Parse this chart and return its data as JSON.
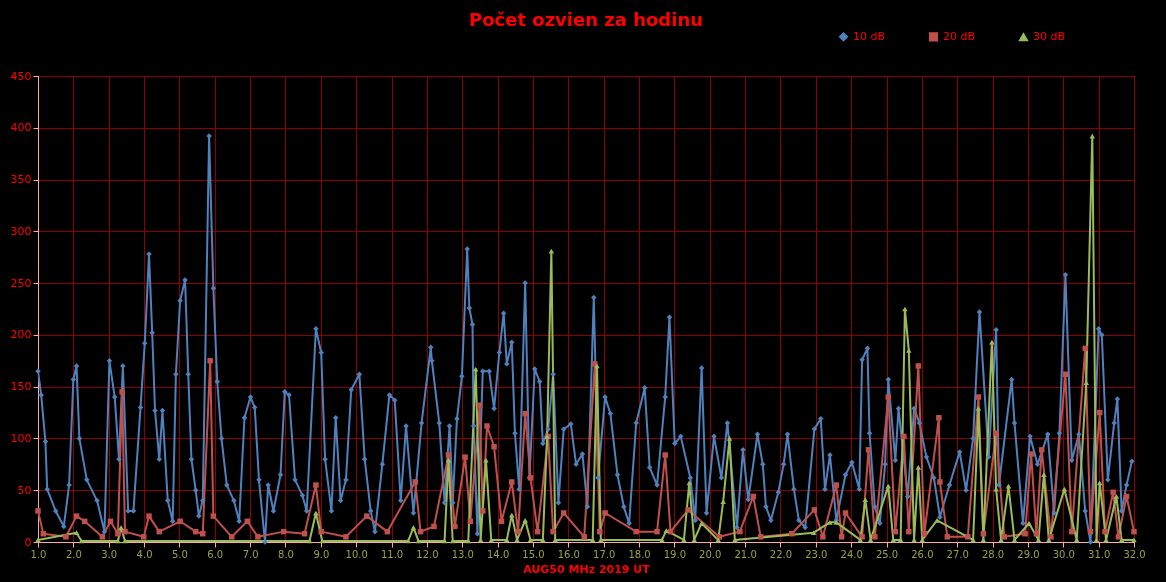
{
  "chart_data": {
    "type": "line",
    "title": "Počet ozvien za hodinu",
    "xlabel": "AUG50 MHz 2019 UT",
    "xlim": [
      1,
      32
    ],
    "xticks": [
      {
        "value": 1,
        "label": "1.0"
      },
      {
        "value": 2,
        "label": "2.0"
      },
      {
        "value": 3,
        "label": "3.0"
      },
      {
        "value": 4,
        "label": "4.0"
      },
      {
        "value": 5,
        "label": "5.0"
      },
      {
        "value": 6,
        "label": "6.0"
      },
      {
        "value": 7,
        "label": "7.0"
      },
      {
        "value": 8,
        "label": "8.0"
      },
      {
        "value": 9,
        "label": "9.0"
      },
      {
        "value": 10,
        "label": "10.0"
      },
      {
        "value": 11,
        "label": "11.0"
      },
      {
        "value": 12,
        "label": "12.0"
      },
      {
        "value": 13,
        "label": "13.0"
      },
      {
        "value": 14,
        "label": "14.0"
      },
      {
        "value": 15,
        "label": "15.0"
      },
      {
        "value": 16,
        "label": "16.0"
      },
      {
        "value": 17,
        "label": "17.0"
      },
      {
        "value": 18,
        "label": "18.0"
      },
      {
        "value": 19,
        "label": "19.0"
      },
      {
        "value": 20,
        "label": "20.0"
      },
      {
        "value": 21,
        "label": "21.0"
      },
      {
        "value": 22,
        "label": "22.0"
      },
      {
        "value": 23,
        "label": "23.0"
      },
      {
        "value": 24,
        "label": "24.0"
      },
      {
        "value": 25,
        "label": "25.0"
      },
      {
        "value": 26,
        "label": "26.0"
      },
      {
        "value": 27,
        "label": "27.0"
      },
      {
        "value": 28,
        "label": "28.0"
      },
      {
        "value": 29,
        "label": "29.0"
      },
      {
        "value": 30,
        "label": "30.0"
      },
      {
        "value": 31,
        "label": "31.0"
      },
      {
        "value": 32,
        "label": "32.0"
      }
    ],
    "ylim": [
      0,
      450
    ],
    "yticks": [
      0,
      50,
      100,
      150,
      200,
      250,
      300,
      350,
      400,
      450
    ],
    "grid": true,
    "legend": "top right",
    "line_style": "solid",
    "series": [
      {
        "name": "10 dB",
        "color": "#4f81bd",
        "marker": "diamond",
        "x": [
          1.0,
          1.09,
          1.21,
          1.26,
          1.5,
          1.73,
          1.88,
          2.0,
          2.09,
          2.17,
          2.38,
          2.67,
          2.88,
          3.02,
          3.17,
          3.29,
          3.4,
          3.55,
          3.7,
          3.9,
          4.02,
          4.14,
          4.23,
          4.31,
          4.43,
          4.52,
          4.67,
          4.81,
          4.9,
          5.02,
          5.16,
          5.25,
          5.34,
          5.46,
          5.55,
          5.66,
          5.84,
          5.96,
          6.07,
          6.19,
          6.34,
          6.54,
          6.69,
          6.84,
          7.01,
          7.13,
          7.25,
          7.42,
          7.51,
          7.66,
          7.86,
          7.98,
          8.1,
          8.27,
          8.48,
          8.6,
          8.86,
          9.01,
          9.12,
          9.3,
          9.42,
          9.56,
          9.71,
          9.86,
          10.09,
          10.24,
          10.41,
          10.53,
          10.74,
          10.94,
          11.09,
          11.26,
          11.41,
          11.62,
          11.85,
          12.11,
          12.14,
          12.35,
          12.5,
          12.64,
          12.73,
          12.85,
          12.99,
          13.14,
          13.2,
          13.29,
          13.32,
          13.43,
          13.58,
          13.76,
          13.9,
          14.05,
          14.17,
          14.26,
          14.4,
          14.49,
          14.61,
          14.78,
          14.9,
          15.05,
          15.19,
          15.28,
          15.43,
          15.57,
          15.72,
          15.87,
          16.07,
          16.22,
          16.4,
          16.54,
          16.72,
          16.84,
          17.04,
          17.19,
          17.39,
          17.57,
          17.72,
          17.92,
          18.16,
          18.3,
          18.51,
          18.74,
          18.86,
          19.01,
          19.18,
          19.45,
          19.59,
          19.77,
          19.91,
          20.12,
          20.33,
          20.5,
          20.77,
          20.94,
          21.09,
          21.35,
          21.5,
          21.59,
          21.73,
          21.94,
          22.09,
          22.2,
          22.38,
          22.52,
          22.7,
          22.96,
          23.14,
          23.26,
          23.4,
          23.58,
          23.84,
          24.02,
          24.23,
          24.31,
          24.46,
          24.52,
          24.67,
          24.81,
          24.96,
          25.05,
          25.25,
          25.34,
          25.6,
          25.78,
          25.93,
          26.13,
          26.34,
          26.51,
          26.78,
          27.07,
          27.25,
          27.45,
          27.63,
          27.89,
          28.1,
          28.18,
          28.54,
          28.62,
          28.86,
          29.06,
          29.27,
          29.56,
          29.74,
          29.89,
          30.06,
          30.24,
          30.44,
          30.62,
          30.77,
          31.0,
          31.09,
          31.26,
          31.44,
          31.53,
          31.65,
          31.79,
          31.94
        ],
        "values": [
          165,
          142,
          97,
          51,
          30,
          15,
          55,
          157,
          170,
          100,
          60,
          40,
          10,
          175,
          140,
          80,
          170,
          30,
          30,
          130,
          192,
          278,
          202,
          127,
          80,
          127,
          40,
          20,
          162,
          233,
          253,
          162,
          80,
          50,
          25,
          40,
          392,
          245,
          155,
          100,
          55,
          40,
          20,
          120,
          140,
          130,
          60,
          0,
          55,
          30,
          65,
          145,
          142,
          60,
          45,
          30,
          206,
          183,
          80,
          30,
          120,
          40,
          60,
          147,
          162,
          80,
          30,
          10,
          75,
          142,
          137,
          40,
          112,
          28,
          115,
          188,
          175,
          115,
          38,
          112,
          38,
          119,
          160,
          283,
          226,
          210,
          112,
          8,
          165,
          165,
          129,
          183,
          221,
          172,
          193,
          105,
          51,
          250,
          62,
          167,
          155,
          95,
          109,
          162,
          38,
          109,
          114,
          75,
          85,
          34,
          236,
          62,
          140,
          124,
          65,
          34,
          18,
          115,
          149,
          72,
          55,
          140,
          217,
          95,
          102,
          62,
          21,
          168,
          28,
          102,
          62,
          115,
          14,
          89,
          41,
          104,
          75,
          34,
          21,
          48,
          75,
          104,
          51,
          21,
          14,
          109,
          119,
          51,
          84,
          21,
          65,
          77,
          51,
          176,
          187,
          105,
          34,
          18,
          75,
          157,
          79,
          129,
          44,
          129,
          115,
          82,
          62,
          24,
          55,
          87,
          50,
          100,
          222,
          82,
          205,
          55,
          157,
          115,
          18,
          102,
          75,
          104,
          28,
          105,
          258,
          79,
          104,
          30,
          0,
          206,
          200,
          60,
          115,
          138,
          30,
          55,
          78
        ]
      },
      {
        "name": "20 dB",
        "color": "#c0504d",
        "marker": "square",
        "x": [
          1.0,
          1.15,
          1.79,
          2.09,
          2.32,
          2.82,
          3.05,
          3.26,
          3.38,
          3.46,
          3.99,
          4.14,
          4.43,
          5.02,
          5.46,
          5.66,
          5.87,
          5.96,
          6.48,
          6.92,
          7.22,
          7.95,
          8.54,
          8.86,
          9.01,
          9.71,
          10.3,
          10.88,
          11.67,
          11.82,
          12.2,
          12.61,
          12.79,
          13.08,
          13.23,
          13.49,
          13.58,
          13.7,
          13.9,
          14.11,
          14.4,
          14.58,
          14.78,
          14.93,
          15.13,
          15.43,
          15.57,
          15.87,
          16.45,
          16.75,
          16.89,
          17.04,
          17.92,
          18.51,
          18.74,
          18.89,
          19.39,
          20.27,
          20.85,
          21.23,
          21.44,
          22.32,
          22.96,
          23.2,
          23.58,
          23.73,
          23.84,
          24.31,
          24.49,
          24.67,
          25.05,
          25.25,
          25.49,
          25.63,
          25.9,
          26.07,
          26.48,
          26.51,
          26.72,
          27.3,
          27.6,
          27.74,
          28.1,
          28.33,
          28.92,
          29.09,
          29.24,
          29.39,
          29.65,
          30.06,
          30.24,
          30.62,
          30.77,
          31.03,
          31.18,
          31.41,
          31.56,
          31.79,
          32.0
        ],
        "values": [
          30,
          8,
          5,
          25,
          20,
          5,
          20,
          8,
          145,
          10,
          5,
          25,
          10,
          20,
          10,
          8,
          175,
          25,
          5,
          20,
          5,
          10,
          8,
          55,
          10,
          5,
          25,
          10,
          58,
          10,
          15,
          84,
          15,
          82,
          20,
          132,
          30,
          112,
          92,
          20,
          58,
          10,
          124,
          62,
          10,
          102,
          10,
          28,
          5,
          172,
          10,
          28,
          10,
          10,
          84,
          10,
          31,
          5,
          10,
          44,
          5,
          8,
          31,
          5,
          55,
          5,
          28,
          5,
          89,
          5,
          140,
          10,
          102,
          10,
          170,
          8,
          120,
          58,
          5,
          5,
          140,
          8,
          105,
          5,
          8,
          85,
          8,
          89,
          5,
          162,
          10,
          187,
          10,
          125,
          10,
          48,
          5,
          44,
          10
        ]
      },
      {
        "name": "30 dB",
        "color": "#9bbb59",
        "marker": "triangle",
        "x": [
          1.0,
          2.09,
          2.23,
          3.26,
          3.35,
          3.46,
          8.68,
          8.86,
          9.04,
          11.47,
          11.62,
          11.76,
          12.5,
          12.61,
          12.73,
          13.17,
          13.38,
          13.52,
          13.67,
          13.82,
          14.26,
          14.4,
          14.55,
          14.78,
          14.93,
          15.28,
          15.4,
          15.52,
          15.63,
          16.69,
          16.81,
          16.92,
          18.65,
          18.77,
          19.27,
          19.42,
          19.56,
          19.77,
          20.24,
          20.38,
          20.56,
          20.71,
          22.94,
          23.4,
          23.58,
          24.26,
          24.4,
          24.55,
          25.05,
          25.19,
          25.4,
          25.52,
          25.63,
          25.78,
          25.9,
          26.01,
          26.43,
          27.45,
          27.6,
          27.74,
          27.98,
          28.1,
          28.24,
          28.45,
          28.62,
          29.03,
          29.3,
          29.45,
          29.59,
          30.03,
          30.38,
          30.65,
          30.82,
          30.94,
          31.03,
          31.21,
          31.5,
          31.65,
          32.0
        ],
        "values": [
          2,
          9,
          1,
          1,
          14,
          1,
          1,
          28,
          1,
          1,
          14,
          1,
          1,
          79,
          1,
          1,
          167,
          2,
          79,
          2,
          2,
          26,
          2,
          21,
          2,
          2,
          102,
          281,
          2,
          2,
          170,
          2,
          2,
          11,
          2,
          57,
          2,
          18,
          2,
          39,
          100,
          2,
          9,
          19,
          19,
          2,
          41,
          2,
          54,
          2,
          2,
          225,
          185,
          2,
          72,
          2,
          21,
          2,
          129,
          2,
          193,
          51,
          2,
          54,
          2,
          18,
          2,
          65,
          2,
          51,
          2,
          154,
          392,
          2,
          57,
          2,
          44,
          2,
          2
        ]
      }
    ]
  }
}
